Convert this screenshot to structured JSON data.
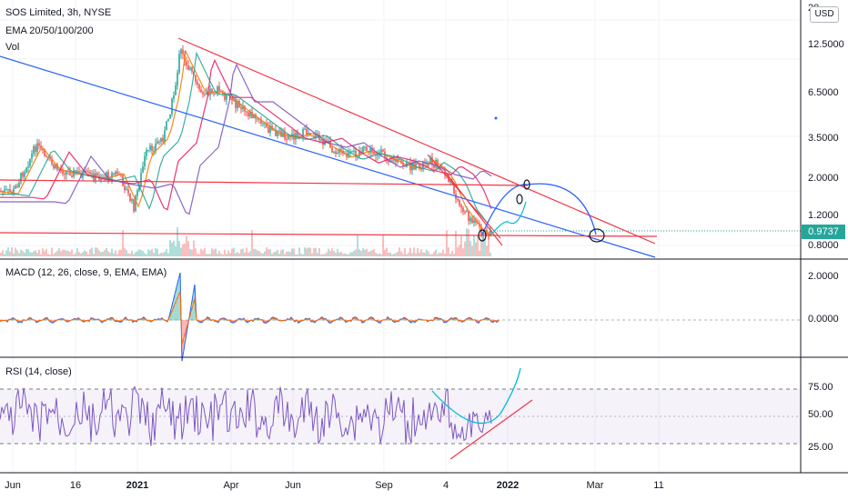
{
  "header": {
    "title": "SOS Limited, 3h, NYSE",
    "ema_label": "EMA 20/50/100/200",
    "vol_label": "Vol",
    "currency": "USD",
    "axis_top_partial": "20"
  },
  "price_axis": {
    "ticks": [
      "12.5000",
      "6.5000",
      "3.5000",
      "2.0000",
      "1.2000",
      "0.8000"
    ],
    "last_price": "0.9737"
  },
  "macd": {
    "label": "MACD (12, 26, close, 9, EMA, EMA)",
    "ticks": [
      "2.0000",
      "0.0000"
    ]
  },
  "rsi": {
    "label": "RSI (14, close)",
    "ticks": [
      "75.00",
      "50.00",
      "25.00"
    ]
  },
  "time_axis": [
    {
      "label": "Jun",
      "bold": false
    },
    {
      "label": "16",
      "bold": false
    },
    {
      "label": "2021",
      "bold": true
    },
    {
      "label": "Apr",
      "bold": false
    },
    {
      "label": "Jun",
      "bold": false
    },
    {
      "label": "Sep",
      "bold": false
    },
    {
      "label": "4",
      "bold": false
    },
    {
      "label": "2022",
      "bold": true
    },
    {
      "label": "Mar",
      "bold": false
    },
    {
      "label": "11",
      "bold": false
    }
  ],
  "colors": {
    "up": "#26a69a",
    "down": "#ef5350",
    "trendline": "#f23645",
    "blue_line": "#2962ff",
    "arc": "#2962ff",
    "ema": [
      "#f57c00",
      "#26a69a",
      "#e91e63",
      "#7e57c2"
    ],
    "rsi_line": "#7e57c2",
    "rsi_band": "#7e57c2",
    "rsi_curve": "#00bcd4",
    "macd_line": "#2962ff",
    "signal_line": "#ff6d00"
  }
}
